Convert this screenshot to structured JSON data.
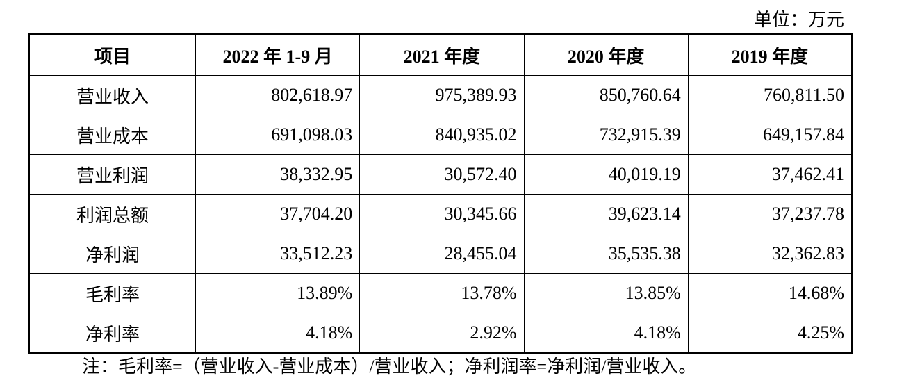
{
  "header": {
    "unit": "单位：万元"
  },
  "table": {
    "columns": [
      "项目",
      "2022 年 1-9 月",
      "2021 年度",
      "2020 年度",
      "2019 年度"
    ],
    "rows": [
      [
        "营业收入",
        "802,618.97",
        "975,389.93",
        "850,760.64",
        "760,811.50"
      ],
      [
        "营业成本",
        "691,098.03",
        "840,935.02",
        "732,915.39",
        "649,157.84"
      ],
      [
        "营业利润",
        "38,332.95",
        "30,572.40",
        "40,019.19",
        "37,462.41"
      ],
      [
        "利润总额",
        "37,704.20",
        "30,345.66",
        "39,623.14",
        "37,237.78"
      ],
      [
        "净利润",
        "33,512.23",
        "28,455.04",
        "35,535.38",
        "32,362.83"
      ],
      [
        "毛利率",
        "13.89%",
        "13.78%",
        "13.85%",
        "14.68%"
      ],
      [
        "净利率",
        "4.18%",
        "2.92%",
        "4.18%",
        "4.25%"
      ]
    ]
  },
  "note": "注：毛利率=（营业收入-营业成本）/营业收入；净利润率=净利润/营业收入。"
}
